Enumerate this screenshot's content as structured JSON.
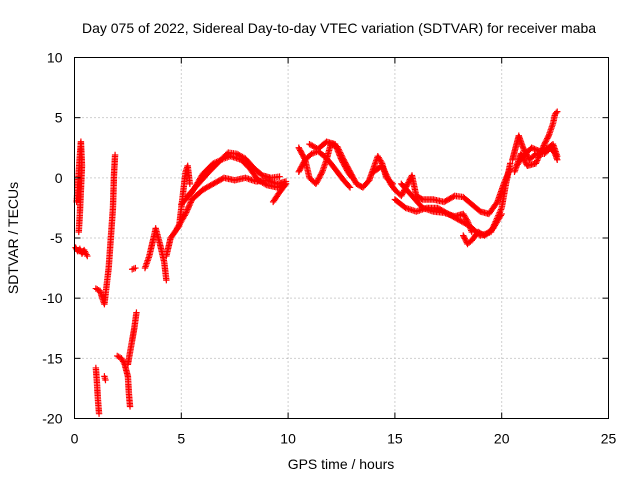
{
  "chart_data": {
    "type": "scatter",
    "title": "Day 075 of 2022, Sidereal Day-to-day VTEC variation (SDTVAR) for receiver maba",
    "xlabel": "GPS time / hours",
    "ylabel": "SDTVAR / TECUs",
    "xlim": [
      0,
      25
    ],
    "ylim": [
      -20,
      10
    ],
    "xticks": [
      0,
      5,
      10,
      15,
      20,
      25
    ],
    "yticks": [
      -20,
      -15,
      -10,
      -5,
      0,
      5,
      10
    ],
    "grid": true,
    "marker": "+",
    "color": "#ff0000",
    "series": [
      {
        "name": "SDTVAR",
        "arcs": [
          [
            [
              0.05,
              -5.8
            ],
            [
              0.15,
              -6.1
            ],
            [
              0.25,
              -5.9
            ],
            [
              0.35,
              -6.3
            ],
            [
              0.45,
              -6.0
            ],
            [
              0.6,
              -6.5
            ]
          ],
          [
            [
              0.1,
              -2.0
            ],
            [
              0.15,
              -0.8
            ],
            [
              0.2,
              0.5
            ],
            [
              0.25,
              1.8
            ],
            [
              0.3,
              3.0
            ],
            [
              0.35,
              1.0
            ],
            [
              0.3,
              -1.0
            ],
            [
              0.25,
              -3.0
            ],
            [
              0.2,
              -4.5
            ]
          ],
          [
            [
              1.0,
              -15.8
            ],
            [
              1.05,
              -17.0
            ],
            [
              1.1,
              -18.5
            ],
            [
              1.15,
              -19.6
            ]
          ],
          [
            [
              1.0,
              -9.2
            ],
            [
              1.2,
              -9.4
            ],
            [
              1.3,
              -10.0
            ],
            [
              1.4,
              -10.5
            ],
            [
              1.5,
              -9.0
            ],
            [
              1.6,
              -7.5
            ],
            [
              1.7,
              -5.0
            ],
            [
              1.8,
              -2.5
            ],
            [
              1.85,
              0.3
            ],
            [
              1.9,
              1.9
            ]
          ],
          [
            [
              1.4,
              -16.5
            ],
            [
              1.45,
              -16.8
            ]
          ],
          [
            [
              2.0,
              -14.8
            ],
            [
              2.2,
              -15.0
            ],
            [
              2.35,
              -15.5
            ],
            [
              2.5,
              -16.5
            ],
            [
              2.55,
              -18.0
            ],
            [
              2.6,
              -19.0
            ]
          ],
          [
            [
              2.5,
              -15.5
            ],
            [
              2.6,
              -14.5
            ],
            [
              2.7,
              -13.5
            ],
            [
              2.8,
              -12.5
            ],
            [
              2.9,
              -11.2
            ]
          ],
          [
            [
              2.7,
              -7.6
            ],
            [
              2.85,
              -7.5
            ]
          ],
          [
            [
              3.3,
              -7.5
            ],
            [
              3.5,
              -6.5
            ],
            [
              3.7,
              -5.0
            ],
            [
              3.8,
              -4.2
            ],
            [
              4.0,
              -5.5
            ],
            [
              4.2,
              -7.0
            ],
            [
              4.3,
              -8.5
            ]
          ],
          [
            [
              4.3,
              -6.5
            ],
            [
              4.5,
              -5.0
            ],
            [
              4.7,
              -4.5
            ],
            [
              4.9,
              -4.0
            ],
            [
              5.0,
              -2.5
            ],
            [
              5.1,
              -1.0
            ],
            [
              5.2,
              0.5
            ],
            [
              5.3,
              1.0
            ],
            [
              5.4,
              -0.5
            ]
          ],
          [
            [
              4.8,
              -4.2
            ],
            [
              5.2,
              -3.0
            ],
            [
              5.5,
              -1.8
            ],
            [
              6.0,
              -1.0
            ],
            [
              6.5,
              -0.5
            ],
            [
              7.0,
              0.0
            ],
            [
              7.5,
              -0.2
            ],
            [
              8.0,
              0.0
            ],
            [
              8.5,
              -0.3
            ],
            [
              9.0,
              -0.2
            ],
            [
              9.5,
              -0.5
            ],
            [
              9.9,
              -0.3
            ]
          ],
          [
            [
              5.0,
              -2.2
            ],
            [
              5.5,
              -1.2
            ],
            [
              6.0,
              0.3
            ],
            [
              6.5,
              1.2
            ],
            [
              7.0,
              1.6
            ],
            [
              7.3,
              1.8
            ],
            [
              7.8,
              1.5
            ],
            [
              8.2,
              0.8
            ],
            [
              8.6,
              -0.2
            ],
            [
              9.0,
              -0.6
            ],
            [
              9.5,
              -0.8
            ],
            [
              9.9,
              -0.5
            ]
          ],
          [
            [
              5.3,
              -1.5
            ],
            [
              5.8,
              -0.5
            ],
            [
              6.3,
              0.5
            ],
            [
              6.8,
              1.4
            ],
            [
              7.2,
              2.1
            ],
            [
              7.6,
              2.0
            ],
            [
              8.0,
              1.6
            ],
            [
              8.4,
              0.8
            ],
            [
              8.8,
              0.2
            ],
            [
              9.2,
              0.0
            ],
            [
              9.6,
              0.1
            ]
          ],
          [
            [
              9.3,
              -2.0
            ],
            [
              9.6,
              -1.2
            ],
            [
              9.9,
              -0.5
            ]
          ],
          [
            [
              10.5,
              2.5
            ],
            [
              10.8,
              1.5
            ],
            [
              11.0,
              0.0
            ],
            [
              11.3,
              -0.5
            ],
            [
              11.6,
              0.5
            ],
            [
              11.8,
              1.5
            ],
            [
              12.0,
              2.8
            ],
            [
              12.3,
              2.6
            ],
            [
              12.6,
              1.5
            ],
            [
              12.9,
              0.5
            ],
            [
              13.2,
              -0.5
            ],
            [
              13.5,
              -0.8
            ],
            [
              13.8,
              -0.2
            ],
            [
              14.0,
              0.8
            ],
            [
              14.2,
              1.8
            ],
            [
              14.4,
              1.2
            ],
            [
              14.6,
              0.0
            ],
            [
              14.9,
              -0.5
            ]
          ],
          [
            [
              10.5,
              0.5
            ],
            [
              10.8,
              1.5
            ],
            [
              11.1,
              2.0
            ],
            [
              11.4,
              2.2
            ],
            [
              11.7,
              1.8
            ],
            [
              12.0,
              1.2
            ],
            [
              12.3,
              0.5
            ],
            [
              12.6,
              -0.2
            ],
            [
              12.9,
              -0.8
            ]
          ],
          [
            [
              11.0,
              2.8
            ],
            [
              11.4,
              2.4
            ],
            [
              11.8,
              3.0
            ],
            [
              12.2,
              2.8
            ],
            [
              12.5,
              1.5
            ],
            [
              12.8,
              0.5
            ],
            [
              13.0,
              0.0
            ]
          ],
          [
            [
              14.0,
              0.5
            ],
            [
              14.4,
              1.0
            ],
            [
              14.8,
              -0.5
            ],
            [
              15.0,
              -1.0
            ],
            [
              15.3,
              -1.5
            ],
            [
              15.6,
              -0.5
            ],
            [
              15.8,
              0.2
            ],
            [
              16.0,
              -1.5
            ],
            [
              16.3,
              -1.8
            ],
            [
              16.8,
              -1.8
            ],
            [
              17.3,
              -2.0
            ],
            [
              17.8,
              -1.5
            ],
            [
              18.2,
              -1.6
            ],
            [
              18.6,
              -2.2
            ],
            [
              19.0,
              -2.8
            ],
            [
              19.4,
              -3.0
            ],
            [
              19.8,
              -2.0
            ],
            [
              20.1,
              -0.5
            ],
            [
              20.4,
              0.8
            ]
          ],
          [
            [
              15.0,
              -1.8
            ],
            [
              15.5,
              -2.5
            ],
            [
              16.0,
              -2.8
            ],
            [
              16.5,
              -2.5
            ],
            [
              17.0,
              -2.5
            ],
            [
              17.5,
              -3.0
            ],
            [
              18.0,
              -3.5
            ],
            [
              18.5,
              -4.0
            ],
            [
              19.0,
              -4.8
            ],
            [
              19.5,
              -4.5
            ],
            [
              20.0,
              -2.5
            ],
            [
              20.2,
              -0.5
            ],
            [
              20.4,
              1.2
            ]
          ],
          [
            [
              15.3,
              -0.5
            ],
            [
              15.8,
              -1.5
            ],
            [
              16.3,
              -2.5
            ],
            [
              16.8,
              -2.8
            ],
            [
              17.3,
              -2.9
            ],
            [
              17.8,
              -3.2
            ],
            [
              18.2,
              -3.0
            ],
            [
              18.4,
              -3.6
            ],
            [
              18.6,
              -4.5
            ]
          ],
          [
            [
              18.2,
              -4.8
            ],
            [
              18.4,
              -5.5
            ],
            [
              18.6,
              -5.2
            ],
            [
              18.9,
              -4.5
            ],
            [
              19.2,
              -4.8
            ],
            [
              19.6,
              -4.2
            ],
            [
              20.0,
              -3.0
            ]
          ],
          [
            [
              20.5,
              1.5
            ],
            [
              20.8,
              3.5
            ],
            [
              21.0,
              2.5
            ],
            [
              21.3,
              1.5
            ],
            [
              21.6,
              2.0
            ],
            [
              22.0,
              2.0
            ],
            [
              22.3,
              2.5
            ],
            [
              22.5,
              2.0
            ],
            [
              22.6,
              1.5
            ]
          ],
          [
            [
              20.6,
              0.5
            ],
            [
              20.9,
              2.0
            ],
            [
              21.2,
              1.0
            ],
            [
              21.6,
              1.2
            ],
            [
              22.0,
              2.8
            ],
            [
              22.2,
              3.5
            ],
            [
              22.4,
              4.5
            ],
            [
              22.5,
              5.3
            ],
            [
              22.6,
              5.5
            ]
          ],
          [
            [
              20.7,
              1.0
            ],
            [
              21.0,
              1.8
            ],
            [
              21.4,
              2.5
            ],
            [
              21.8,
              2.2
            ],
            [
              22.1,
              2.4
            ],
            [
              22.4,
              2.8
            ],
            [
              22.6,
              1.8
            ]
          ]
        ]
      }
    ]
  }
}
